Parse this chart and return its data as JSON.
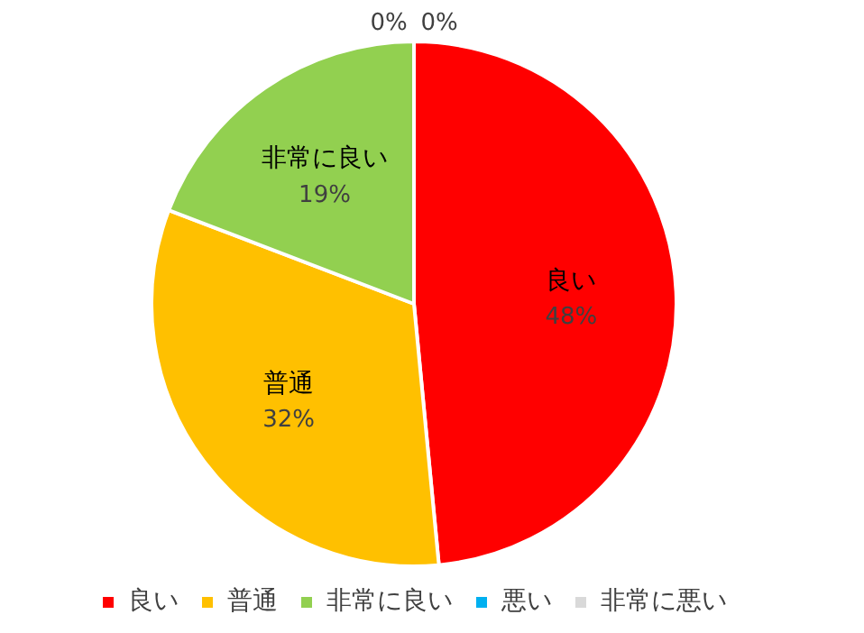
{
  "chart_data": {
    "type": "pie",
    "categories": [
      "良い",
      "普通",
      "非常に良い",
      "悪い",
      "非常に悪い"
    ],
    "values": [
      48,
      32,
      19,
      0,
      0
    ],
    "value_labels": [
      "48%",
      "32%",
      "19%",
      "0%",
      "0%"
    ],
    "colors": [
      "#ff0000",
      "#ffc000",
      "#92d050",
      "#00b0f0",
      "#d9d9d9"
    ],
    "legend": "bottom"
  }
}
